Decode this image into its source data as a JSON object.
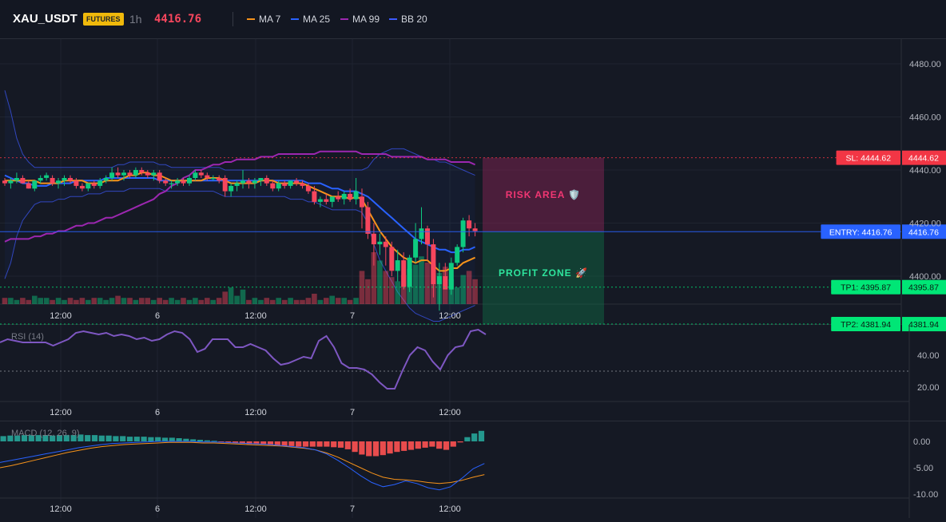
{
  "header": {
    "symbol": "XAU_USDT",
    "badge": "FUTURES",
    "interval": "1h",
    "price": "4416.76",
    "legend": [
      {
        "label": "MA 7",
        "color": "#f7931a"
      },
      {
        "label": "MA 25",
        "color": "#2962ff"
      },
      {
        "label": "MA 99",
        "color": "#9c27b0"
      },
      {
        "label": "BB 20",
        "color": "#3d5afe"
      }
    ]
  },
  "colors": {
    "up": "#0ecb81",
    "down": "#f6465d",
    "stop_loss": "#f23645",
    "entry": "#2962ff",
    "take_profit": "#00e676",
    "rsi": "#7e57c2",
    "macd": "#2962ff",
    "signal": "#f7931a"
  },
  "time_axis": [
    "12:00",
    "6",
    "12:00",
    "7",
    "12:00"
  ],
  "main_chart": {
    "price_axis_ticks": [
      "4480.00",
      "4460.00",
      "4440.00",
      "4420.00",
      "4400.00"
    ],
    "tick_values": [
      4480,
      4460,
      4440,
      4420,
      4400
    ],
    "levels": [
      {
        "key": "sl",
        "value": 4444.62,
        "tag": "SL: 4444.62",
        "axis_label": "4444.62",
        "color": "#f23645"
      },
      {
        "key": "entry",
        "value": 4416.76,
        "tag": "ENTRY: 4416.76",
        "axis_label": "4416.76",
        "color": "#2962ff"
      },
      {
        "key": "tp1",
        "value": 4395.87,
        "tag": "TP1: 4395.87",
        "axis_label": "4395.87",
        "color": "#00e676"
      },
      {
        "key": "tp2",
        "value": 4381.94,
        "tag": "TP2: 4381.94",
        "axis_label": "4381.94",
        "color": "#00e676"
      }
    ],
    "zones": {
      "risk_label": "RISK AREA 🛡️",
      "profit_label": "PROFIT ZONE 🚀"
    },
    "candles": [
      [
        4436,
        4437,
        4434,
        4435
      ],
      [
        4435,
        4437,
        4433,
        4436
      ],
      [
        4436,
        4439,
        4435,
        4437
      ],
      [
        4437,
        4438,
        4435,
        4435
      ],
      [
        4435,
        4436,
        4433,
        4433
      ],
      [
        4433,
        4436,
        4432,
        4436
      ],
      [
        4436,
        4438,
        4435,
        4437
      ],
      [
        4437,
        4439,
        4436,
        4438
      ],
      [
        4437,
        4438,
        4434,
        4435
      ],
      [
        4435,
        4437,
        4433,
        4436
      ],
      [
        4436,
        4438,
        4434,
        4437
      ],
      [
        4437,
        4438,
        4435,
        4436
      ],
      [
        4436,
        4437,
        4433,
        4434
      ],
      [
        4434,
        4435,
        4432,
        4433
      ],
      [
        4433,
        4435,
        4432,
        4435
      ],
      [
        4435,
        4436,
        4433,
        4434
      ],
      [
        4434,
        4437,
        4433,
        4436
      ],
      [
        4436,
        4438,
        4435,
        4437
      ],
      [
        4437,
        4441,
        4436,
        4439
      ],
      [
        4439,
        4441,
        4437,
        4438
      ],
      [
        4438,
        4440,
        4436,
        4439
      ],
      [
        4439,
        4440,
        4437,
        4438
      ],
      [
        4438,
        4441,
        4437,
        4440
      ],
      [
        4440,
        4441,
        4438,
        4439
      ],
      [
        4439,
        4440,
        4437,
        4438
      ],
      [
        4438,
        4440,
        4436,
        4439
      ],
      [
        4439,
        4440,
        4435,
        4436
      ],
      [
        4436,
        4437,
        4434,
        4435
      ],
      [
        4435,
        4436,
        4433,
        4435
      ],
      [
        4435,
        4437,
        4434,
        4436
      ],
      [
        4436,
        4437,
        4434,
        4435
      ],
      [
        4435,
        4438,
        4434,
        4437
      ],
      [
        4437,
        4440,
        4436,
        4439
      ],
      [
        4439,
        4440,
        4437,
        4438
      ],
      [
        4438,
        4439,
        4436,
        4437
      ],
      [
        4437,
        4438,
        4436,
        4437
      ],
      [
        4437,
        4438,
        4435,
        4436
      ],
      [
        4437,
        4438,
        4430,
        4432
      ],
      [
        4432,
        4435,
        4430,
        4434
      ],
      [
        4434,
        4436,
        4432,
        4435
      ],
      [
        4435,
        4440,
        4433,
        4436
      ],
      [
        4436,
        4437,
        4433,
        4435
      ],
      [
        4435,
        4437,
        4433,
        4436
      ],
      [
        4436,
        4437,
        4434,
        4437
      ],
      [
        4437,
        4438,
        4434,
        4435
      ],
      [
        4435,
        4436,
        4432,
        4433
      ],
      [
        4433,
        4436,
        4432,
        4435
      ],
      [
        4435,
        4436,
        4433,
        4434
      ],
      [
        4434,
        4436,
        4433,
        4436
      ],
      [
        4436,
        4437,
        4434,
        4435
      ],
      [
        4435,
        4436,
        4433,
        4434
      ],
      [
        4434,
        4435,
        4431,
        4432
      ],
      [
        4432,
        4434,
        4427,
        4428
      ],
      [
        4428,
        4430,
        4426,
        4429
      ],
      [
        4429,
        4431,
        4427,
        4428
      ],
      [
        4428,
        4430,
        4426,
        4430
      ],
      [
        4430,
        4432,
        4428,
        4429
      ],
      [
        4429,
        4432,
        4427,
        4431
      ],
      [
        4431,
        4433,
        4428,
        4429
      ],
      [
        4429,
        4437,
        4427,
        4432
      ],
      [
        4430,
        4433,
        4418,
        4426
      ],
      [
        4426,
        4428,
        4414,
        4416
      ],
      [
        4416,
        4420,
        4404,
        4412
      ],
      [
        4412,
        4416,
        4408,
        4413
      ],
      [
        4413,
        4415,
        4404,
        4411
      ],
      [
        4411,
        4413,
        4400,
        4402
      ],
      [
        4402,
        4410,
        4398,
        4406
      ],
      [
        4406,
        4409,
        4395,
        4396
      ],
      [
        4396,
        4408,
        4394,
        4407
      ],
      [
        4407,
        4420,
        4405,
        4414
      ],
      [
        4414,
        4426,
        4412,
        4418
      ],
      [
        4418,
        4419,
        4406,
        4412
      ],
      [
        4412,
        4414,
        4392,
        4397
      ],
      [
        4397,
        4405,
        4387,
        4400
      ],
      [
        4400,
        4405,
        4395,
        4395
      ],
      [
        4395,
        4407,
        4393,
        4405
      ],
      [
        4405,
        4412,
        4404,
        4411
      ],
      [
        4411,
        4422,
        4409,
        4421
      ],
      [
        4421,
        4423,
        4415,
        4418
      ],
      [
        4418,
        4420,
        4415,
        4417
      ]
    ],
    "volumes": [
      3,
      3,
      2,
      3,
      2,
      4,
      3,
      3,
      2,
      3,
      2,
      3,
      2,
      3,
      2,
      3,
      3,
      2,
      3,
      4,
      3,
      3,
      2,
      3,
      3,
      2,
      3,
      2,
      3,
      2,
      3,
      2,
      3,
      2,
      3,
      2,
      3,
      6,
      8,
      4,
      7,
      2,
      3,
      2,
      3,
      2,
      3,
      2,
      3,
      2,
      2,
      3,
      5,
      2,
      3,
      4,
      3,
      3,
      2,
      3,
      16,
      12,
      25,
      21,
      16,
      13,
      11,
      14,
      17,
      19,
      23,
      20,
      19,
      15,
      18,
      12,
      8,
      14,
      16,
      12
    ],
    "ma7": [
      4436,
      4436,
      4436,
      4436,
      4436,
      4436,
      4435,
      4435,
      4435,
      4435,
      4436,
      4436,
      4436,
      4436,
      4435,
      4435,
      4435,
      4436,
      4436,
      4436,
      4437,
      4438,
      4438,
      4439,
      4439,
      4438,
      4438,
      4437,
      4436,
      4436,
      4436,
      4436,
      4436,
      4436,
      4437,
      4437,
      4437,
      4436,
      4435,
      4435,
      4435,
      4435,
      4435,
      4436,
      4436,
      4436,
      4435,
      4435,
      4435,
      4435,
      4435,
      4434,
      4433,
      4432,
      4431,
      4430,
      4430,
      4430,
      4429,
      4430,
      4429,
      4425,
      4421,
      4417,
      4414,
      4411,
      4409,
      4407,
      4406,
      4405,
      4406,
      4406,
      4404,
      4402,
      4402,
      4403,
      4403,
      4405,
      4406,
      4407
    ],
    "ma25": [
      4438,
      4437,
      4436,
      4435,
      4435,
      4434,
      4434,
      4434,
      4435,
      4435,
      4435,
      4435,
      4436,
      4436,
      4436,
      4436,
      4436,
      4437,
      4437,
      4437,
      4437,
      4437,
      4437,
      4437,
      4437,
      4437,
      4436,
      4436,
      4436,
      4436,
      4436,
      4436,
      4436,
      4436,
      4436,
      4436,
      4436,
      4436,
      4436,
      4436,
      4436,
      4436,
      4436,
      4436,
      4436,
      4436,
      4436,
      4436,
      4436,
      4436,
      4436,
      4435,
      4435,
      4435,
      4434,
      4433,
      4433,
      4432,
      4432,
      4432,
      4431,
      4430,
      4428,
      4426,
      4424,
      4422,
      4420,
      4418,
      4416,
      4414,
      4413,
      4412,
      4411,
      4410,
      4410,
      4409,
      4409,
      4410,
      4410,
      4411
    ],
    "ma99": [
      4413,
      4414,
      4414,
      4414,
      4414,
      4415,
      4415,
      4416,
      4416,
      4417,
      4417,
      4418,
      4419,
      4419,
      4420,
      4420,
      4421,
      4422,
      4422,
      4423,
      4424,
      4425,
      4426,
      4427,
      4428,
      4429,
      4431,
      4432,
      4434,
      4435,
      4437,
      4438,
      4440,
      4440,
      4441,
      4442,
      4442,
      4443,
      4443,
      4444,
      4444,
      4444,
      4444,
      4445,
      4445,
      4445,
      4446,
      4446,
      4446,
      4446,
      4446,
      4446,
      4446,
      4447,
      4447,
      4447,
      4447,
      4447,
      4447,
      4447,
      4446,
      4446,
      4446,
      4446,
      4446,
      4445,
      4445,
      4445,
      4445,
      4445,
      4445,
      4444,
      4444,
      4444,
      4444,
      4443,
      4443,
      4443,
      4443,
      4442
    ],
    "bb_upper": [
      4470,
      4462,
      4452,
      4446,
      4443,
      4441,
      4441,
      4441,
      4441,
      4441,
      4441,
      4441,
      4441,
      4441,
      4441,
      4441,
      4441,
      4441,
      4441,
      4442,
      4442,
      4443,
      4443,
      4443,
      4443,
      4443,
      4442,
      4442,
      4441,
      4441,
      4441,
      4441,
      4441,
      4441,
      4441,
      4441,
      4441,
      4440,
      4440,
      4440,
      4440,
      4440,
      4440,
      4440,
      4440,
      4440,
      4440,
      4440,
      4440,
      4440,
      4440,
      4440,
      4440,
      4440,
      4440,
      4440,
      4440,
      4440,
      4440,
      4440,
      4440,
      4441,
      4444,
      4446,
      4447,
      4448,
      4448,
      4448,
      4447,
      4446,
      4445,
      4444,
      4444,
      4443,
      4443,
      4442,
      4441,
      4440,
      4439,
      4438
    ],
    "bb_lower": [
      4399,
      4405,
      4415,
      4421,
      4424,
      4427,
      4428,
      4428,
      4428,
      4429,
      4429,
      4430,
      4430,
      4430,
      4431,
      4431,
      4431,
      4432,
      4432,
      4432,
      4432,
      4433,
      4433,
      4433,
      4433,
      4433,
      4433,
      4432,
      4432,
      4432,
      4432,
      4432,
      4432,
      4432,
      4432,
      4432,
      4431,
      4430,
      4430,
      4430,
      4430,
      4430,
      4430,
      4430,
      4430,
      4430,
      4430,
      4430,
      4429,
      4429,
      4429,
      4428,
      4428,
      4427,
      4426,
      4425,
      4425,
      4425,
      4425,
      4425,
      4424,
      4420,
      4412,
      4406,
      4402,
      4398,
      4394,
      4391,
      4388,
      4386,
      4385,
      4384,
      4383,
      4383,
      4384,
      4385,
      4386,
      4387,
      4388,
      4389
    ]
  },
  "rsi_pane": {
    "title": "RSI (14)",
    "axis_ticks": [
      "40.00",
      "20.00"
    ],
    "tick_values": [
      40,
      20
    ],
    "values": [
      48,
      50,
      49,
      48,
      48,
      48,
      48,
      46,
      48,
      50,
      54,
      55,
      54,
      53,
      54,
      52,
      53,
      52,
      50,
      51,
      49,
      50,
      53,
      55,
      54,
      50,
      42,
      44,
      50,
      50,
      50,
      45,
      45,
      47,
      45,
      43,
      38,
      34,
      35,
      37,
      39,
      38,
      49,
      52,
      45,
      35,
      32,
      32,
      31,
      28,
      23,
      19,
      19,
      30,
      40,
      45,
      43,
      36,
      31,
      40,
      45,
      46,
      55,
      56,
      53
    ],
    "reference": 30
  },
  "macd_pane": {
    "title": "MACD (12, 26, 9)",
    "axis_ticks": [
      "0.00",
      "-5.00",
      "-10.00"
    ],
    "tick_values": [
      0,
      -5,
      -10
    ],
    "hist": [
      1.0,
      1.1,
      1.1,
      1.2,
      1.2,
      1.2,
      1.2,
      1.1,
      1.2,
      1.2,
      1.2,
      1.3,
      1.2,
      1.2,
      1.1,
      1.1,
      1.0,
      1.0,
      0.9,
      0.9,
      0.9,
      0.8,
      0.8,
      0.7,
      0.7,
      0.6,
      0.5,
      0.4,
      0.3,
      0.2,
      0.1,
      -0.1,
      -0.2,
      -0.3,
      -0.4,
      -0.5,
      -0.5,
      -0.6,
      -0.7,
      -0.8,
      -0.9,
      -0.9,
      -1.0,
      -1.0,
      -1.0,
      -1.0,
      -1.0,
      -1.1,
      -1.2,
      -1.5,
      -2.0,
      -2.5,
      -2.8,
      -2.8,
      -2.6,
      -2.3,
      -2.0,
      -1.8,
      -1.6,
      -1.4,
      -1.2,
      -1.0,
      -1.4,
      -1.6,
      -1.0,
      -0.2,
      0.8,
      1.5,
      2.0
    ],
    "macd_line": [
      -4.0,
      -3.6,
      -3.2,
      -2.8,
      -2.4,
      -2.0,
      -1.6,
      -1.2,
      -0.9,
      -0.6,
      -0.4,
      -0.3,
      -0.2,
      -0.1,
      0,
      0,
      0,
      0,
      -0.1,
      -0.1,
      -0.2,
      -0.3,
      -0.4,
      -0.5,
      -0.6,
      -0.8,
      -1.0,
      -1.2,
      -1.6,
      -2.4,
      -3.6,
      -5.0,
      -6.5,
      -7.8,
      -8.6,
      -8.2,
      -7.5,
      -8.0,
      -8.8,
      -9.2,
      -8.6,
      -7.0,
      -5.2,
      -4.2
    ],
    "signal_line": [
      -5.0,
      -4.6,
      -4.1,
      -3.6,
      -3.1,
      -2.6,
      -2.1,
      -1.7,
      -1.3,
      -1.0,
      -0.8,
      -0.6,
      -0.5,
      -0.4,
      -0.3,
      -0.2,
      -0.2,
      -0.2,
      -0.3,
      -0.3,
      -0.4,
      -0.5,
      -0.6,
      -0.7,
      -0.8,
      -0.9,
      -1.1,
      -1.3,
      -1.6,
      -2.2,
      -3.0,
      -4.0,
      -5.0,
      -6.0,
      -6.8,
      -7.2,
      -7.3,
      -7.5,
      -7.8,
      -8.0,
      -7.8,
      -7.4,
      -6.8,
      -6.3
    ]
  }
}
